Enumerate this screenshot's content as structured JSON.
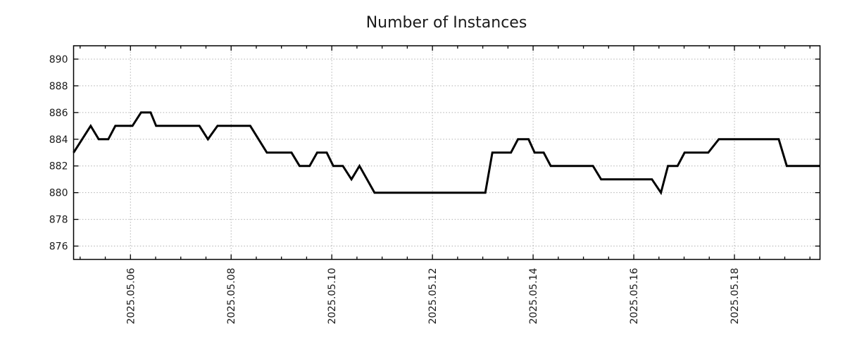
{
  "title": "Number of Instances",
  "colors": {
    "line": "#000000",
    "grid": "#b0b0b0",
    "axis": "#000000",
    "text": "#1a1a1a",
    "background": "#ffffff"
  },
  "chart_data": {
    "type": "line",
    "title": "Number of Instances",
    "xlabel": "",
    "ylabel": "",
    "x_unit": "day of May 2025 (fractional day number)",
    "xlim": [
      4.87,
      19.7
    ],
    "ylim": [
      875,
      891
    ],
    "grid": true,
    "legend_position": "none",
    "x_ticks": {
      "positions": [
        6,
        8,
        10,
        12,
        14,
        16,
        18
      ],
      "labels": [
        "2025.05.06",
        "2025.05.08",
        "2025.05.10",
        "2025.05.12",
        "2025.05.14",
        "2025.05.16",
        "2025.05.18"
      ],
      "rotation_deg": -90,
      "minor_interval_days": 0.5
    },
    "y_ticks": {
      "positions": [
        876,
        878,
        880,
        882,
        884,
        886,
        888,
        890
      ],
      "labels": [
        "876",
        "878",
        "880",
        "882",
        "884",
        "886",
        "888",
        "890"
      ]
    },
    "series": [
      {
        "name": "Number of Instances",
        "color": "#000000",
        "line_width": 3,
        "points": [
          [
            4.87,
            883
          ],
          [
            5.21,
            885
          ],
          [
            5.37,
            884
          ],
          [
            5.56,
            884
          ],
          [
            5.7,
            885
          ],
          [
            6.04,
            885
          ],
          [
            6.21,
            886
          ],
          [
            6.4,
            886
          ],
          [
            6.51,
            885
          ],
          [
            7.37,
            885
          ],
          [
            7.54,
            884
          ],
          [
            7.73,
            885
          ],
          [
            8.38,
            885
          ],
          [
            8.71,
            883
          ],
          [
            9.2,
            883
          ],
          [
            9.36,
            882
          ],
          [
            9.56,
            882
          ],
          [
            9.71,
            883
          ],
          [
            9.9,
            883
          ],
          [
            10.03,
            882
          ],
          [
            10.22,
            882
          ],
          [
            10.39,
            881
          ],
          [
            10.55,
            882
          ],
          [
            10.85,
            880
          ],
          [
            13.05,
            880
          ],
          [
            13.19,
            883
          ],
          [
            13.56,
            883
          ],
          [
            13.7,
            884
          ],
          [
            13.91,
            884
          ],
          [
            14.03,
            883
          ],
          [
            14.21,
            883
          ],
          [
            14.35,
            882
          ],
          [
            15.19,
            882
          ],
          [
            15.35,
            881
          ],
          [
            16.36,
            881
          ],
          [
            16.54,
            880
          ],
          [
            16.68,
            882
          ],
          [
            16.87,
            882
          ],
          [
            17.01,
            883
          ],
          [
            17.48,
            883
          ],
          [
            17.69,
            884
          ],
          [
            18.88,
            884
          ],
          [
            19.04,
            882
          ],
          [
            19.7,
            882
          ]
        ]
      }
    ]
  }
}
